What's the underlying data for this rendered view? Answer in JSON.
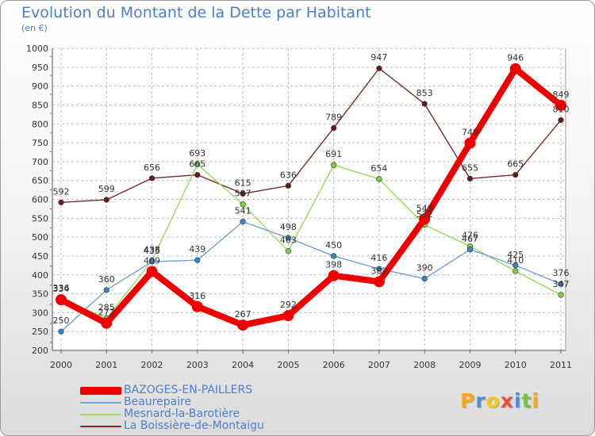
{
  "chart_data": {
    "type": "line",
    "title": "Evolution du Montant de la Dette par Habitant",
    "subtitle": "(en €)",
    "x": [
      "2000",
      "2001",
      "2002",
      "2003",
      "2004",
      "2005",
      "2006",
      "2007",
      "2008",
      "2009",
      "2010",
      "2011"
    ],
    "yticks": [
      "200",
      "250",
      "300",
      "350",
      "400",
      "450",
      "500",
      "550",
      "600",
      "650",
      "700",
      "750",
      "800",
      "850",
      "900",
      "950",
      "1000"
    ],
    "ylim": [
      200,
      1000
    ],
    "series": [
      {
        "name": "BAZOGES-EN-PAILLERS",
        "color": "#ee0000",
        "markerColor": "#ee0000",
        "values": [
          334,
          272,
          409,
          316,
          267,
          292,
          398,
          382,
          548,
          749,
          946,
          849
        ],
        "labels": [
          "334",
          "272",
          "409",
          "316",
          "267",
          "292",
          "398",
          "382",
          "548",
          "749",
          "946",
          "849"
        ]
      },
      {
        "name": "Beaurepaire",
        "color": "#6fa2d6",
        "markerColor": "#3a84c8",
        "values": [
          250,
          360,
          435,
          439,
          541,
          498,
          450,
          416,
          390,
          467,
          425,
          376
        ],
        "labels": [
          "250",
          "360",
          "435",
          "439",
          "541",
          "498",
          "450",
          "416",
          "390",
          "467",
          "425",
          "376"
        ]
      },
      {
        "name": "Mesnard-la-Barotière",
        "color": "#98dc5a",
        "markerColor": "#7ed040",
        "values": [
          336,
          285,
          438,
          693,
          587,
          463,
          691,
          654,
          532,
          476,
          410,
          347
        ],
        "labels": [
          "336",
          "285",
          "438",
          "693",
          "587",
          "463",
          "691",
          "654",
          "532",
          "476",
          "410",
          "347"
        ]
      },
      {
        "name": "La Boissière-de-Montaigu",
        "color": "#7a2828",
        "markerColor": "#6a1a1a",
        "values": [
          592,
          599,
          656,
          665,
          615,
          636,
          789,
          947,
          853,
          655,
          665,
          810
        ],
        "labels": [
          "592",
          "599",
          "656",
          "665",
          "615",
          "636",
          "789",
          "947",
          "853",
          "655",
          "665",
          "810"
        ]
      }
    ]
  },
  "logo": {
    "letters": [
      "P",
      "r",
      "o",
      "x",
      "i",
      "t",
      "i"
    ],
    "colors": [
      "#f5a623",
      "#4a90d9",
      "#f5c518",
      "#e94e3c",
      "#4a90d9",
      "#7ac143",
      "#f5a623"
    ]
  }
}
